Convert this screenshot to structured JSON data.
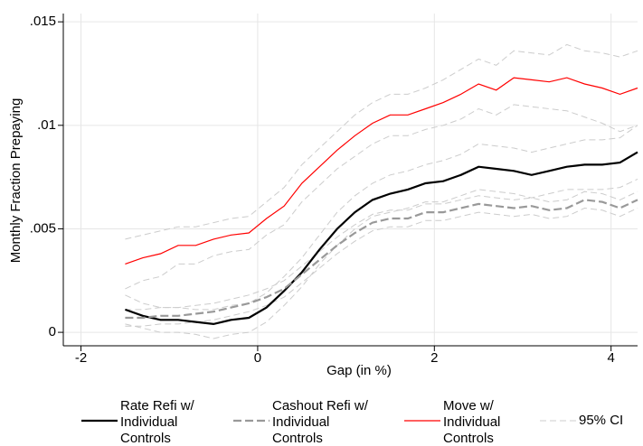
{
  "chart_data": {
    "type": "line",
    "xlabel": "Gap (in %)",
    "ylabel": "Monthly Fraction Prepaying",
    "x": [
      -1.5,
      -1.3,
      -1.1,
      -0.9,
      -0.7,
      -0.5,
      -0.3,
      -0.1,
      0.1,
      0.3,
      0.5,
      0.7,
      0.9,
      1.1,
      1.3,
      1.5,
      1.7,
      1.9,
      2.1,
      2.3,
      2.5,
      2.7,
      2.9,
      3.1,
      3.3,
      3.5,
      3.7,
      3.9,
      4.1,
      4.3
    ],
    "xlim": [
      -2.2,
      4.3
    ],
    "xticks": [
      -2,
      0,
      2,
      4
    ],
    "ylim": [
      -0.00065,
      0.0154
    ],
    "yticks": [
      0,
      {
        "value": 0.005,
        "label": ".005"
      },
      {
        "value": 0.01,
        "label": ".01"
      },
      {
        "value": 0.015,
        "label": ".015"
      }
    ],
    "grid": true,
    "ci_name": "95% CI",
    "ci_color": "#cccccc",
    "series": [
      {
        "name": [
          "Rate Refi w/",
          "Individual",
          "Controls"
        ],
        "color": "#000000",
        "dash": false,
        "values": [
          0.0011,
          0.0008,
          0.0006,
          0.0006,
          0.0005,
          0.0004,
          0.0006,
          0.0007,
          0.0012,
          0.002,
          0.0029,
          0.004,
          0.005,
          0.0058,
          0.0064,
          0.0067,
          0.0069,
          0.0072,
          0.0073,
          0.0076,
          0.008,
          0.0079,
          0.0078,
          0.0076,
          0.0078,
          0.008,
          0.0081,
          0.0081,
          0.0082,
          0.0087
        ],
        "ci_upper": [
          0.0018,
          0.0014,
          0.0012,
          0.0012,
          0.0011,
          0.0011,
          0.0013,
          0.0014,
          0.0019,
          0.0027,
          0.0036,
          0.0047,
          0.0058,
          0.0066,
          0.0072,
          0.0076,
          0.0078,
          0.0081,
          0.0083,
          0.0086,
          0.0091,
          0.009,
          0.0089,
          0.0087,
          0.0089,
          0.0091,
          0.0093,
          0.0093,
          0.0094,
          0.01
        ],
        "ci_lower": [
          0.0004,
          0.0002,
          0.0,
          0.0,
          -0.0001,
          -0.0003,
          -0.0001,
          0.0,
          0.0005,
          0.0013,
          0.0022,
          0.0033,
          0.0042,
          0.005,
          0.0056,
          0.0058,
          0.006,
          0.0063,
          0.0063,
          0.0066,
          0.0069,
          0.0068,
          0.0067,
          0.0065,
          0.0067,
          0.0069,
          0.0069,
          0.0069,
          0.007,
          0.0074
        ]
      },
      {
        "name": [
          "Cashout Refi w/",
          "Individual",
          "Controls"
        ],
        "color": "#999999",
        "dash": true,
        "values": [
          0.0007,
          0.0007,
          0.0008,
          0.0008,
          0.0009,
          0.001,
          0.0012,
          0.0014,
          0.0017,
          0.0021,
          0.0028,
          0.0035,
          0.0042,
          0.0048,
          0.0053,
          0.0055,
          0.0055,
          0.0058,
          0.0058,
          0.006,
          0.0062,
          0.0061,
          0.006,
          0.0061,
          0.0059,
          0.006,
          0.0064,
          0.0063,
          0.006,
          0.0064
        ],
        "ci_upper": [
          0.0011,
          0.0011,
          0.0012,
          0.0012,
          0.0013,
          0.0014,
          0.0016,
          0.0018,
          0.0021,
          0.0025,
          0.0032,
          0.0039,
          0.0046,
          0.0052,
          0.0057,
          0.0059,
          0.0059,
          0.0062,
          0.0062,
          0.0064,
          0.0066,
          0.0065,
          0.0064,
          0.0065,
          0.0063,
          0.0064,
          0.0068,
          0.0067,
          0.0064,
          0.0068
        ],
        "ci_lower": [
          0.0003,
          0.0003,
          0.0004,
          0.0004,
          0.0005,
          0.0006,
          0.0008,
          0.001,
          0.0013,
          0.0017,
          0.0024,
          0.0031,
          0.0038,
          0.0044,
          0.0049,
          0.0051,
          0.0051,
          0.0054,
          0.0054,
          0.0056,
          0.0058,
          0.0057,
          0.0056,
          0.0057,
          0.0055,
          0.0056,
          0.006,
          0.0059,
          0.0056,
          0.006
        ]
      },
      {
        "name": [
          "Move w/",
          "Individual",
          "Controls"
        ],
        "color": "#ff0000",
        "dash": false,
        "values": [
          0.0033,
          0.0036,
          0.0038,
          0.0042,
          0.0042,
          0.0045,
          0.0047,
          0.0048,
          0.0055,
          0.0061,
          0.0072,
          0.008,
          0.0088,
          0.0095,
          0.0101,
          0.0105,
          0.0105,
          0.0108,
          0.0111,
          0.0115,
          0.012,
          0.0117,
          0.0123,
          0.0122,
          0.0121,
          0.0123,
          0.012,
          0.0118,
          0.0115,
          0.0118
        ],
        "ci_upper": [
          0.0045,
          0.0047,
          0.0049,
          0.0051,
          0.0051,
          0.0053,
          0.0055,
          0.0056,
          0.0063,
          0.007,
          0.0081,
          0.0089,
          0.0097,
          0.0105,
          0.0111,
          0.0115,
          0.0115,
          0.0118,
          0.0122,
          0.0127,
          0.0132,
          0.0129,
          0.0136,
          0.0135,
          0.0134,
          0.0139,
          0.0136,
          0.0135,
          0.0133,
          0.0136
        ],
        "ci_lower": [
          0.0021,
          0.0025,
          0.0027,
          0.0033,
          0.0033,
          0.0037,
          0.0039,
          0.004,
          0.0047,
          0.0052,
          0.0063,
          0.0071,
          0.0079,
          0.0085,
          0.0091,
          0.0095,
          0.0095,
          0.0098,
          0.01,
          0.0103,
          0.0108,
          0.0105,
          0.011,
          0.0109,
          0.0108,
          0.0107,
          0.0104,
          0.0101,
          0.0097,
          0.01
        ]
      }
    ]
  }
}
